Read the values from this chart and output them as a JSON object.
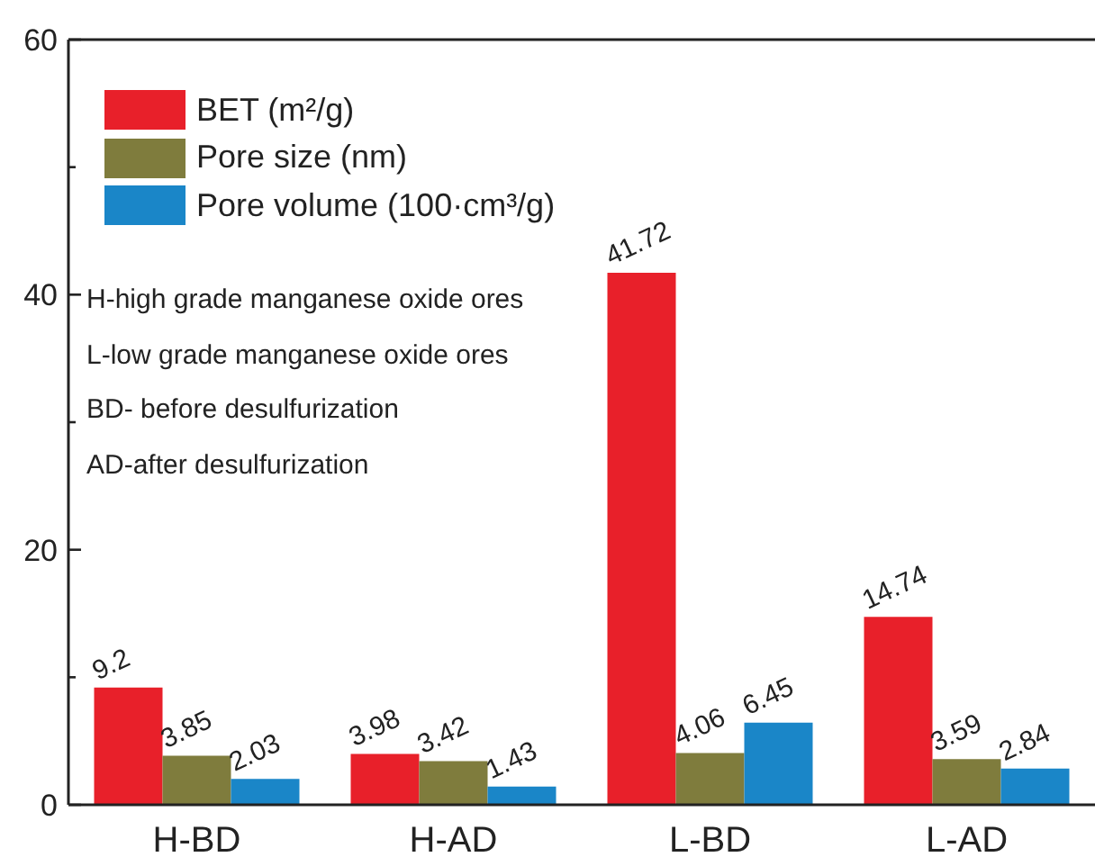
{
  "chart_data": {
    "type": "bar",
    "categories": [
      "H-BD",
      "H-AD",
      "L-BD",
      "L-AD"
    ],
    "series": [
      {
        "name": "BET (m²/g)",
        "color": "#e8202a",
        "values": [
          9.2,
          3.98,
          41.72,
          14.74
        ]
      },
      {
        "name": "Pore size (nm)",
        "color": "#7f7c3d",
        "values": [
          3.85,
          3.42,
          4.06,
          3.59
        ]
      },
      {
        "name": "Pore volume (100·cm³/g)",
        "color": "#1a86c8",
        "values": [
          2.03,
          1.43,
          6.45,
          2.84
        ]
      }
    ],
    "ylim": [
      0,
      60
    ],
    "yticks": [
      0,
      {
        "value": 10,
        "label": null
      },
      20,
      {
        "value": 30,
        "label": null
      },
      40,
      {
        "value": 50,
        "label": null
      },
      60
    ],
    "data_labels": true,
    "legend": "top left",
    "annotations": [
      "H-high grade manganese oxide ores",
      "L-low grade manganese oxide ores",
      "BD- before desulfurization",
      "AD-after desulfurization"
    ]
  }
}
